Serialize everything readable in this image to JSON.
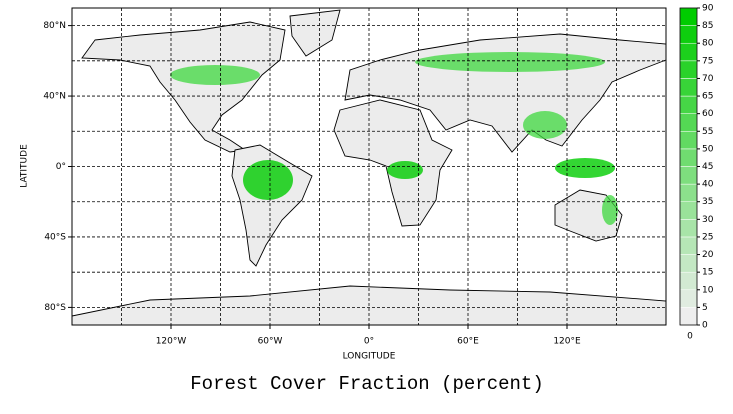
{
  "title": "Forest Cover Fraction (percent)",
  "x_axis": {
    "label": "LONGITUDE",
    "lim": [
      -180,
      180
    ],
    "ticks": [
      {
        "value": -120,
        "label": "120°W"
      },
      {
        "value": -60,
        "label": "60°W"
      },
      {
        "value": 0,
        "label": "0°"
      },
      {
        "value": 60,
        "label": "60°E"
      },
      {
        "value": 120,
        "label": "120°E"
      }
    ],
    "grid": [
      -150,
      -120,
      -90,
      -60,
      -30,
      0,
      30,
      60,
      90,
      120,
      150
    ]
  },
  "y_axis": {
    "label": "LATITUDE",
    "lim": [
      -90,
      90
    ],
    "ticks": [
      {
        "value": 80,
        "label": "80°N"
      },
      {
        "value": 40,
        "label": "40°N"
      },
      {
        "value": 0,
        "label": "0°"
      },
      {
        "value": -40,
        "label": "40°S"
      },
      {
        "value": -80,
        "label": "80°S"
      }
    ],
    "grid": [
      -80,
      -60,
      -40,
      -20,
      0,
      20,
      40,
      60,
      80
    ]
  },
  "colorbar": {
    "lim": [
      0,
      90
    ],
    "ticks": [
      0,
      5,
      10,
      15,
      20,
      25,
      30,
      35,
      40,
      45,
      50,
      55,
      60,
      65,
      70,
      75,
      80,
      85,
      90
    ],
    "colors": [
      "#eeeeee",
      "#00cc00"
    ],
    "min_label": "0"
  }
}
